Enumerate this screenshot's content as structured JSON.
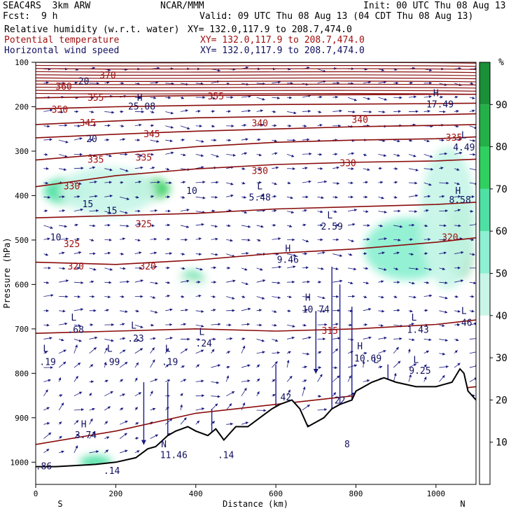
{
  "header": {
    "model": "SEAC4RS  3km ARW",
    "org": "NCAR/MMM",
    "init": "Init: 00 UTC Thu 08 Aug 13",
    "fcst_label": "Fcst:",
    "fcst_value": "9 h",
    "valid": "Valid: 09 UTC Thu 08 Aug 13 (04 CDT Thu 08 Aug 13)"
  },
  "fields": [
    {
      "name": "Relative humidity (w.r.t. water)",
      "xy": "XY= 132.0,117.9 to 208.7,474.0",
      "color": "#000000"
    },
    {
      "name": "Potential temperature",
      "xy": "XY= 132.0,117.9 to 208.7,474.0",
      "color": "#a01010"
    },
    {
      "name": "Horizontal wind speed",
      "xy": "XY= 132.0,117.9 to 208.7,474.0",
      "color": "#101060"
    }
  ],
  "chart_data": {
    "type": "heatmap",
    "title": "",
    "xlabel": "Distance (km)",
    "ylabel": "Pressure (hPa)",
    "xlim": [
      0,
      1100
    ],
    "ylim": [
      1050,
      100
    ],
    "xticks": [
      0,
      200,
      400,
      600,
      800,
      1000
    ],
    "yticks": [
      100,
      200,
      300,
      400,
      500,
      600,
      700,
      800,
      900,
      1000
    ],
    "x_end_labels": {
      "left": "S",
      "right": "N"
    },
    "colorbar": {
      "unit": "%",
      "levels": [
        0,
        10,
        20,
        30,
        40,
        50,
        60,
        70,
        80,
        90,
        100
      ],
      "tick_labels": [
        10,
        20,
        30,
        40,
        50,
        60,
        70,
        80,
        90
      ],
      "colors": [
        "#ffffff",
        "#ffffff",
        "#ffffff",
        "#ffffff",
        "#c8f5e8",
        "#8ef0d2",
        "#4ee0a4",
        "#30d060",
        "#24b048",
        "#1a9038"
      ]
    },
    "rh_regions": [
      {
        "x": 80,
        "p": 390,
        "rx": 60,
        "rp": 30,
        "rh": 60
      },
      {
        "x": 280,
        "p": 385,
        "rx": 55,
        "rp": 25,
        "rh": 75
      },
      {
        "x": 180,
        "p": 390,
        "rx": 120,
        "rp": 55,
        "rh": 45
      },
      {
        "x": 390,
        "p": 600,
        "rx": 35,
        "rp": 30,
        "rh": 60
      },
      {
        "x": 330,
        "p": 640,
        "rx": 160,
        "rp": 55,
        "rh": 38
      },
      {
        "x": 650,
        "p": 420,
        "rx": 110,
        "rp": 80,
        "rh": 38
      },
      {
        "x": 760,
        "p": 600,
        "rx": 60,
        "rp": 40,
        "rh": 35
      },
      {
        "x": 930,
        "p": 520,
        "rx": 110,
        "rp": 70,
        "rh": 52
      },
      {
        "x": 1060,
        "p": 500,
        "rx": 35,
        "rp": 90,
        "rh": 80
      },
      {
        "x": 1030,
        "p": 450,
        "rx": 70,
        "rp": 160,
        "rh": 45
      },
      {
        "x": 150,
        "p": 1000,
        "rx": 40,
        "rp": 15,
        "rh": 65
      }
    ],
    "theta_contours": [
      {
        "label": "320",
        "points": [
          [
            0,
            550
          ],
          [
            200,
            555
          ],
          [
            400,
            545
          ],
          [
            600,
            530
          ],
          [
            800,
            520
          ],
          [
            1000,
            505
          ],
          [
            1100,
            495
          ]
        ]
      },
      {
        "label": "325",
        "points": [
          [
            0,
            450
          ],
          [
            200,
            445
          ],
          [
            400,
            440
          ],
          [
            600,
            430
          ],
          [
            800,
            425
          ],
          [
            1000,
            420
          ],
          [
            1100,
            415
          ]
        ]
      },
      {
        "label": "330",
        "points": [
          [
            0,
            380
          ],
          [
            200,
            355
          ],
          [
            400,
            340
          ],
          [
            600,
            330
          ],
          [
            800,
            325
          ],
          [
            1000,
            322
          ],
          [
            1100,
            318
          ]
        ]
      },
      {
        "label": "335",
        "points": [
          [
            0,
            320
          ],
          [
            200,
            305
          ],
          [
            400,
            290
          ],
          [
            600,
            280
          ],
          [
            800,
            275
          ],
          [
            1000,
            272
          ],
          [
            1100,
            268
          ]
        ]
      },
      {
        "label": "340",
        "points": [
          [
            0,
            270
          ],
          [
            200,
            262
          ],
          [
            400,
            255
          ],
          [
            600,
            250
          ],
          [
            800,
            245
          ],
          [
            1000,
            242
          ],
          [
            1100,
            240
          ]
        ]
      },
      {
        "label": "345",
        "points": [
          [
            0,
            240
          ],
          [
            200,
            232
          ],
          [
            400,
            225
          ],
          [
            600,
            222
          ],
          [
            800,
            220
          ],
          [
            1000,
            218
          ],
          [
            1100,
            216
          ]
        ]
      },
      {
        "label": "350",
        "points": [
          [
            0,
            205
          ],
          [
            200,
            200
          ],
          [
            400,
            197
          ],
          [
            600,
            195
          ],
          [
            800,
            194
          ],
          [
            1000,
            193
          ],
          [
            1100,
            192
          ]
        ]
      },
      {
        "label": "355",
        "points": [
          [
            0,
            180
          ],
          [
            200,
            177
          ],
          [
            400,
            175
          ],
          [
            600,
            174
          ],
          [
            800,
            173
          ],
          [
            1000,
            172
          ],
          [
            1100,
            172
          ]
        ]
      },
      {
        "label": "",
        "points": [
          [
            0,
            710
          ],
          [
            200,
            705
          ],
          [
            400,
            700
          ],
          [
            600,
            705
          ],
          [
            800,
            700
          ],
          [
            1000,
            690
          ],
          [
            1100,
            680
          ]
        ]
      },
      {
        "label": "",
        "points": [
          [
            0,
            960
          ],
          [
            200,
            930
          ],
          [
            400,
            890
          ],
          [
            500,
            880
          ],
          [
            600,
            870
          ],
          [
            800,
            850
          ],
          [
            1000,
            840
          ],
          [
            1100,
            830
          ]
        ]
      }
    ],
    "contour_labels": [
      {
        "text": "370",
        "x": 180,
        "p": 130,
        "color": "#a01010"
      },
      {
        "text": "360",
        "x": 70,
        "p": 155,
        "color": "#a01010"
      },
      {
        "text": "355",
        "x": 150,
        "p": 180,
        "color": "#a01010"
      },
      {
        "text": "355",
        "x": 450,
        "p": 177,
        "color": "#a01010"
      },
      {
        "text": "350",
        "x": 60,
        "p": 207,
        "color": "#a01010"
      },
      {
        "text": "345",
        "x": 130,
        "p": 237,
        "color": "#a01010"
      },
      {
        "text": "345",
        "x": 290,
        "p": 262,
        "color": "#a01010"
      },
      {
        "text": "340",
        "x": 560,
        "p": 238,
        "color": "#a01010"
      },
      {
        "text": "340",
        "x": 810,
        "p": 230,
        "color": "#a01010"
      },
      {
        "text": "335",
        "x": 150,
        "p": 320,
        "color": "#a01010"
      },
      {
        "text": "335",
        "x": 270,
        "p": 315,
        "color": "#a01010"
      },
      {
        "text": "330",
        "x": 560,
        "p": 345,
        "color": "#a01010"
      },
      {
        "text": "330",
        "x": 780,
        "p": 328,
        "color": "#a01010"
      },
      {
        "text": "330",
        "x": 90,
        "p": 380,
        "color": "#a01010"
      },
      {
        "text": "325",
        "x": 270,
        "p": 465,
        "color": "#a01010"
      },
      {
        "text": "325",
        "x": 90,
        "p": 510,
        "color": "#a01010"
      },
      {
        "text": "320",
        "x": 100,
        "p": 560,
        "color": "#a01010"
      },
      {
        "text": "320",
        "x": 280,
        "p": 560,
        "color": "#a01010"
      },
      {
        "text": "320",
        "x": 1035,
        "p": 495,
        "color": "#a01010"
      },
      {
        "text": "335",
        "x": 1045,
        "p": 270,
        "color": "#a01010"
      },
      {
        "text": "315",
        "x": 735,
        "p": 705,
        "color": "#a01010"
      },
      {
        "text": "20",
        "x": 120,
        "p": 143,
        "color": "#101060"
      },
      {
        "text": "20",
        "x": 140,
        "p": 273,
        "color": "#101060"
      },
      {
        "text": "15",
        "x": 130,
        "p": 420,
        "color": "#101060"
      },
      {
        "text": "15",
        "x": 190,
        "p": 435,
        "color": "#101060"
      },
      {
        "text": "10",
        "x": 50,
        "p": 495,
        "color": "#101060"
      },
      {
        "text": "10",
        "x": 390,
        "p": 390,
        "color": "#101060"
      },
      {
        "text": "H",
        "x": 260,
        "p": 180,
        "color": "#101060"
      },
      {
        "text": "25.08",
        "x": 265,
        "p": 200,
        "color": "#101060"
      },
      {
        "text": "H",
        "x": 1000,
        "p": 170,
        "color": "#101060"
      },
      {
        "text": "17.49",
        "x": 1010,
        "p": 195,
        "color": "#101060"
      },
      {
        "text": "L",
        "x": 1070,
        "p": 265,
        "color": "#101060"
      },
      {
        "text": "4.49",
        "x": 1070,
        "p": 292,
        "color": "#101060"
      },
      {
        "text": "L",
        "x": 560,
        "p": 380,
        "color": "#101060"
      },
      {
        "text": "5.48",
        "x": 560,
        "p": 405,
        "color": "#101060"
      },
      {
        "text": "L",
        "x": 735,
        "p": 445,
        "color": "#101060"
      },
      {
        "text": "2.59",
        "x": 740,
        "p": 470,
        "color": "#101060"
      },
      {
        "text": "H",
        "x": 1055,
        "p": 390,
        "color": "#101060"
      },
      {
        "text": "8.58",
        "x": 1060,
        "p": 410,
        "color": "#101060"
      },
      {
        "text": "H",
        "x": 630,
        "p": 520,
        "color": "#101060"
      },
      {
        "text": "9.46",
        "x": 630,
        "p": 545,
        "color": "#101060"
      },
      {
        "text": "H",
        "x": 680,
        "p": 630,
        "color": "#101060"
      },
      {
        "text": "10.74",
        "x": 700,
        "p": 657,
        "color": "#101060"
      },
      {
        "text": "L",
        "x": 95,
        "p": 675,
        "color": "#101060"
      },
      {
        "text": ".68",
        "x": 100,
        "p": 703,
        "color": "#101060"
      },
      {
        "text": "L",
        "x": 245,
        "p": 693,
        "color": "#101060"
      },
      {
        "text": ".23",
        "x": 250,
        "p": 722,
        "color": "#101060"
      },
      {
        "text": "L",
        "x": 415,
        "p": 707,
        "color": "#101060"
      },
      {
        "text": ".24",
        "x": 420,
        "p": 733,
        "color": "#101060"
      },
      {
        "text": "L",
        "x": 945,
        "p": 675,
        "color": "#101060"
      },
      {
        "text": "1.43",
        "x": 955,
        "p": 703,
        "color": "#101060"
      },
      {
        "text": "L",
        "x": 1070,
        "p": 660,
        "color": "#101060"
      },
      {
        "text": ".46",
        "x": 1070,
        "p": 687,
        "color": "#101060"
      },
      {
        "text": "L",
        "x": 25,
        "p": 745,
        "color": "#101060"
      },
      {
        "text": ".19",
        "x": 30,
        "p": 775,
        "color": "#101060"
      },
      {
        "text": "L",
        "x": 185,
        "p": 745,
        "color": "#101060"
      },
      {
        "text": ".99",
        "x": 190,
        "p": 775,
        "color": "#101060"
      },
      {
        "text": "L",
        "x": 330,
        "p": 745,
        "color": "#101060"
      },
      {
        "text": ".19",
        "x": 335,
        "p": 775,
        "color": "#101060"
      },
      {
        "text": "H",
        "x": 810,
        "p": 740,
        "color": "#101060"
      },
      {
        "text": "10.69",
        "x": 830,
        "p": 767,
        "color": "#101060"
      },
      {
        "text": "L",
        "x": 850,
        "p": 770,
        "color": "#101060"
      },
      {
        "text": "L",
        "x": 950,
        "p": 770,
        "color": "#101060"
      },
      {
        "text": "9.25",
        "x": 960,
        "p": 795,
        "color": "#101060"
      },
      {
        "text": "42",
        "x": 625,
        "p": 855,
        "color": "#101060"
      },
      {
        "text": "22",
        "x": 760,
        "p": 862,
        "color": "#101060"
      },
      {
        "text": "8",
        "x": 778,
        "p": 960,
        "color": "#101060"
      },
      {
        "text": "H",
        "x": 120,
        "p": 915,
        "color": "#101060"
      },
      {
        "text": "3.74",
        "x": 125,
        "p": 940,
        "color": "#101060"
      },
      {
        "text": "N",
        "x": 320,
        "p": 960,
        "color": "#101060"
      },
      {
        "text": "11.46",
        "x": 345,
        "p": 985,
        "color": "#101060"
      },
      {
        "text": ".14",
        "x": 475,
        "p": 985,
        "color": "#101060"
      },
      {
        "text": ".14",
        "x": 190,
        "p": 1020,
        "color": "#101060"
      },
      {
        "text": ".86",
        "x": 20,
        "p": 1010,
        "color": "#101060"
      }
    ],
    "terrain": [
      [
        0,
        1010
      ],
      [
        50,
        1010
      ],
      [
        150,
        1005
      ],
      [
        200,
        1000
      ],
      [
        250,
        990
      ],
      [
        280,
        970
      ],
      [
        300,
        965
      ],
      [
        330,
        940
      ],
      [
        350,
        930
      ],
      [
        380,
        920
      ],
      [
        400,
        930
      ],
      [
        430,
        940
      ],
      [
        450,
        925
      ],
      [
        470,
        950
      ],
      [
        500,
        920
      ],
      [
        530,
        920
      ],
      [
        560,
        900
      ],
      [
        590,
        880
      ],
      [
        610,
        870
      ],
      [
        640,
        860
      ],
      [
        660,
        880
      ],
      [
        680,
        920
      ],
      [
        700,
        910
      ],
      [
        720,
        900
      ],
      [
        740,
        880
      ],
      [
        760,
        870
      ],
      [
        790,
        860
      ],
      [
        800,
        840
      ],
      [
        840,
        820
      ],
      [
        870,
        810
      ],
      [
        900,
        820
      ],
      [
        950,
        830
      ],
      [
        1000,
        830
      ],
      [
        1040,
        820
      ],
      [
        1060,
        790
      ],
      [
        1070,
        800
      ],
      [
        1080,
        840
      ],
      [
        1100,
        860
      ]
    ],
    "wind_arrows_color": "#1a1a80"
  }
}
